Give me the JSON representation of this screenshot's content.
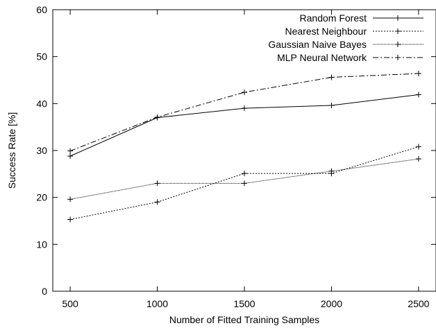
{
  "chart_data": {
    "type": "line",
    "title": "",
    "xlabel": "Number of Fitted Training Samples",
    "ylabel": "Success Rate [%]",
    "x": [
      500,
      1000,
      1500,
      2000,
      2500
    ],
    "xlim": [
      400,
      2600
    ],
    "ylim": [
      0,
      60
    ],
    "xticks": [
      "500",
      "1000",
      "1500",
      "2000",
      "2500"
    ],
    "yticks": [
      "0",
      "10",
      "20",
      "30",
      "40",
      "50",
      "60"
    ],
    "grid": false,
    "legend_position": "top-right",
    "series": [
      {
        "name": "Random Forest",
        "values": [
          28.8,
          37.0,
          39.0,
          39.6,
          41.9
        ],
        "dash": "",
        "color": "#000000"
      },
      {
        "name": "Nearest Neighbour",
        "values": [
          15.3,
          19.0,
          25.1,
          25.1,
          30.8
        ],
        "dash": "2,2",
        "color": "#000000"
      },
      {
        "name": "Gaussian Naive Bayes",
        "values": [
          19.6,
          23.0,
          23.0,
          25.6,
          28.2
        ],
        "dash": "1,1",
        "color": "#000000"
      },
      {
        "name": "MLP Neural Network",
        "values": [
          29.9,
          37.1,
          42.4,
          45.6,
          46.4
        ],
        "dash": "8,3,2,3",
        "color": "#000000"
      }
    ]
  }
}
